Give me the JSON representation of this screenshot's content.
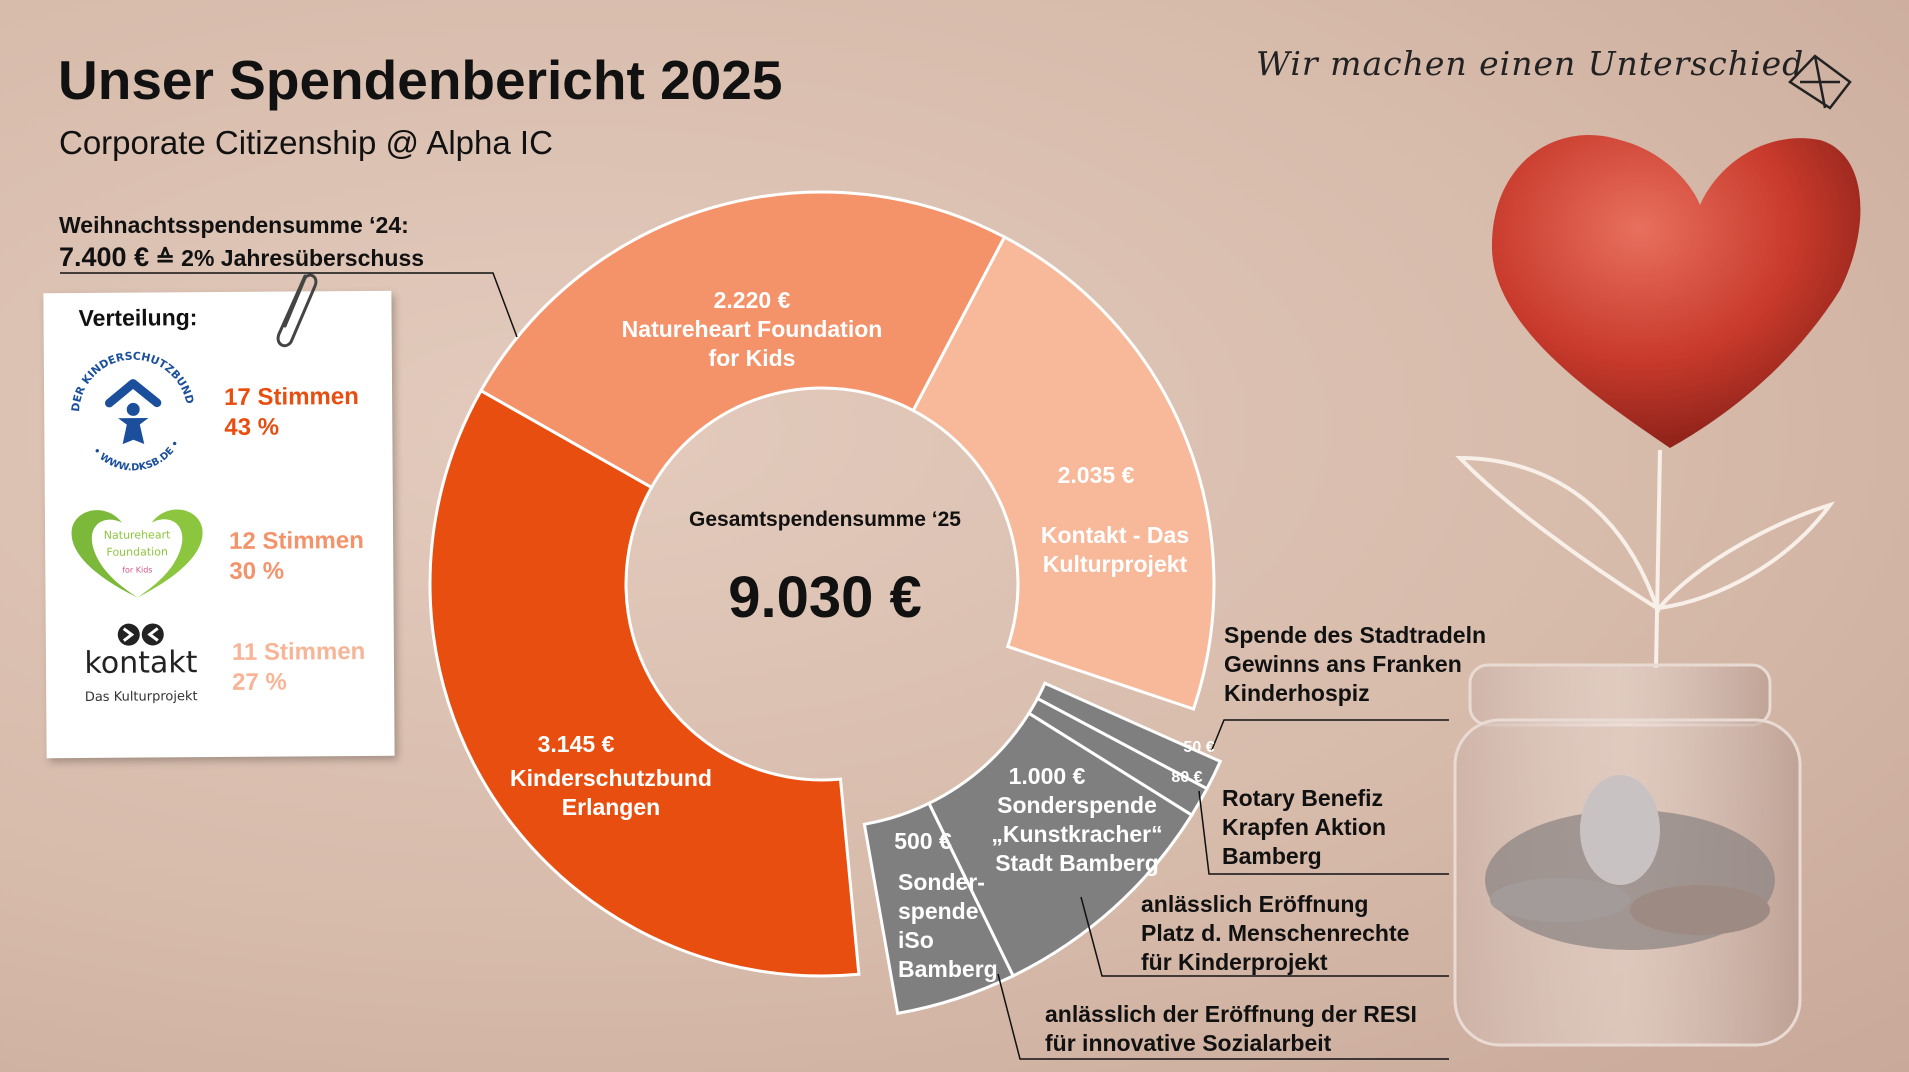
{
  "header": {
    "title": "Unser Spendenbericht 2025",
    "subtitle": "Corporate Citizenship @ Alpha IC",
    "tagline": "Wir machen einen Unterschied"
  },
  "christmas": {
    "label": "Weihnachtsspendensumme ‘24:",
    "amount": "7.400 €",
    "symbol": "≙",
    "note": "2% Jahresüberschuss"
  },
  "distribution": {
    "title": "Verteilung:",
    "items": [
      {
        "logo": "Der Kinderschutzbund",
        "logo_text_top": "DER KINDERSCHUTZBUND",
        "logo_text_bottom": "• WWW.DKSB.DE •",
        "votes": "17 Stimmen",
        "percent": "43 %",
        "color": "#E84E10"
      },
      {
        "logo": "Natureheart Foundation for Kids",
        "logo_text_1": "Natureheart",
        "logo_text_2": "Foundation",
        "logo_text_3": "for Kids",
        "votes": "12 Stimmen",
        "percent": "30 %",
        "color": "#F4926A"
      },
      {
        "logo": "kontakt Das Kulturprojekt",
        "logo_text_1": "kontakt",
        "logo_text_2": "Das Kulturprojekt",
        "votes": "11 Stimmen",
        "percent": "27 %",
        "color": "#F7B497"
      }
    ]
  },
  "chart_data": {
    "type": "donut",
    "center_label": "Gesamtspendensumme ‘25",
    "total": "9.030 €",
    "total_value": 9030,
    "slices": [
      {
        "group": "christmas",
        "value": 3145,
        "amount": "3.145 €",
        "name": [
          "Kinderschutzbund",
          "Erlangen"
        ],
        "color": "#E84E10"
      },
      {
        "group": "christmas",
        "value": 2220,
        "amount": "2.220 €",
        "name": [
          "Natureheart Foundation",
          "for Kids"
        ],
        "color": "#F4926A"
      },
      {
        "group": "christmas",
        "value": 2035,
        "amount": "2.035 €",
        "name": [
          "Kontakt - Das",
          "Kulturprojekt"
        ],
        "color": "#F8B89A"
      },
      {
        "group": "special",
        "value": 50,
        "amount": "50 €",
        "annotation": [
          "Spende des Stadtradeln",
          "Gewinns ans Franken",
          "Kinderhospiz"
        ],
        "color": "#7F7F7F"
      },
      {
        "group": "special",
        "value": 80,
        "amount": "80 €",
        "annotation": [
          "Rotary Benefiz",
          "Krapfen Aktion",
          "Bamberg"
        ],
        "color": "#7F7F7F"
      },
      {
        "group": "special",
        "value": 1000,
        "amount": "1.000 €",
        "name": [
          "Sonderspende",
          "„Kunstkracher“",
          "Stadt Bamberg"
        ],
        "annotation": [
          "anlässlich Eröffnung",
          "Platz d. Menschenrechte",
          "für Kinderprojekt"
        ],
        "color": "#7F7F7F"
      },
      {
        "group": "special",
        "value": 500,
        "amount": "500 €",
        "name": [
          "Sonder-",
          "spende",
          "iSo",
          "Bamberg"
        ],
        "annotation": [
          "anlässlich der Eröffnung der RESI",
          "für innovative Sozialarbeit"
        ],
        "color": "#7F7F7F"
      }
    ]
  }
}
